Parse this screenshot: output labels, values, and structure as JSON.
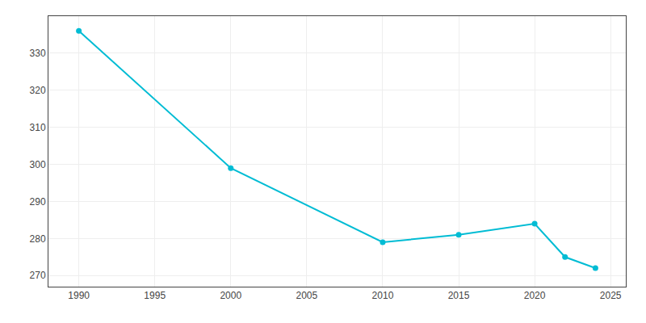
{
  "chart_data": {
    "type": "line",
    "x": [
      1990,
      2000,
      2010,
      2015,
      2020,
      2022,
      2024
    ],
    "values": [
      336,
      299,
      279,
      281,
      284,
      275,
      272
    ],
    "color": "#00bcd4",
    "marker": "circle",
    "xlim": [
      1988,
      2026
    ],
    "ylim": [
      267,
      340
    ],
    "xticks": [
      1990,
      1995,
      2000,
      2005,
      2010,
      2015,
      2020,
      2025
    ],
    "yticks": [
      270,
      280,
      290,
      300,
      310,
      320,
      330
    ],
    "grid": true
  }
}
